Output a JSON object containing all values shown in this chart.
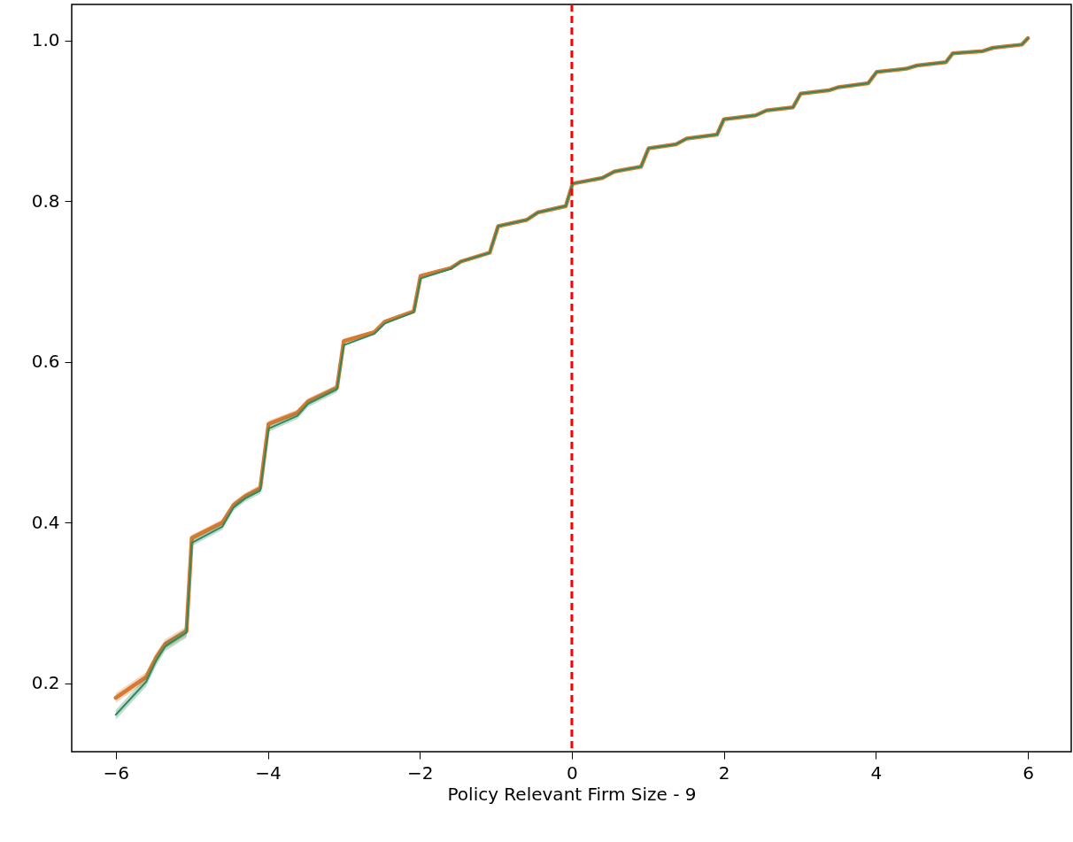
{
  "chart_data": {
    "type": "line",
    "xlabel": "Policy Relevant Firm Size - 9",
    "x": [
      -6,
      -5.6,
      -5.47,
      -5.35,
      -5.07,
      -5.0,
      -4.6,
      -4.45,
      -4.3,
      -4.1,
      -3.99,
      -3.61,
      -3.47,
      -3.09,
      -3.0,
      -2.6,
      -2.46,
      -2.08,
      -1.99,
      -1.59,
      -1.46,
      -1.08,
      -0.97,
      -0.59,
      -0.45,
      -0.08,
      0.01,
      0.4,
      0.56,
      0.91,
      1.01,
      1.37,
      1.51,
      1.91,
      2.0,
      2.42,
      2.56,
      2.91,
      3.01,
      3.38,
      3.51,
      3.9,
      4.01,
      4.4,
      4.54,
      4.92,
      5.01,
      5.41,
      5.54,
      5.92,
      6.0
    ],
    "series": [
      {
        "color": "#d9792f",
        "values": [
          0.182,
          0.208,
          0.232,
          0.249,
          0.265,
          0.381,
          0.4,
          0.422,
          0.433,
          0.443,
          0.523,
          0.537,
          0.551,
          0.568,
          0.626,
          0.637,
          0.65,
          0.663,
          0.707,
          0.717,
          0.725,
          0.736,
          0.769,
          0.777,
          0.786,
          0.794,
          0.822,
          0.829,
          0.837,
          0.843,
          0.866,
          0.871,
          0.878,
          0.883,
          0.902,
          0.907,
          0.913,
          0.917,
          0.934,
          0.938,
          0.942,
          0.947,
          0.961,
          0.965,
          0.969,
          0.973,
          0.984,
          0.987,
          0.991,
          0.995,
          1.003
        ],
        "lower": [
          0.176,
          0.202,
          0.226,
          0.243,
          0.259,
          0.377,
          0.396,
          0.418,
          0.429,
          0.439,
          0.519,
          0.533,
          0.547,
          0.564,
          0.622,
          null,
          null,
          null,
          null,
          null,
          null,
          null,
          null,
          null,
          null,
          null,
          null,
          null,
          null,
          null,
          null,
          null,
          null,
          null,
          null,
          null,
          null,
          null,
          null,
          null,
          null,
          null,
          null,
          null,
          null,
          null,
          null,
          null,
          null,
          null,
          null
        ],
        "upper": [
          0.188,
          0.214,
          0.238,
          0.255,
          0.271,
          0.385,
          0.404,
          0.426,
          0.437,
          0.447,
          0.527,
          0.541,
          0.555,
          0.572,
          0.63,
          null,
          null,
          null,
          null,
          null,
          null,
          null,
          null,
          null,
          null,
          null,
          null,
          null,
          null,
          null,
          null,
          null,
          null,
          null,
          null,
          null,
          null,
          null,
          null,
          null,
          null,
          null,
          null,
          null,
          null,
          null,
          null,
          null,
          null,
          null,
          null
        ]
      },
      {
        "color": "#2f8a5f",
        "values": [
          0.161,
          0.202,
          0.228,
          0.246,
          0.263,
          0.375,
          0.395,
          0.419,
          0.43,
          0.44,
          0.517,
          0.533,
          0.548,
          0.566,
          0.621,
          0.635,
          0.648,
          0.662,
          0.704,
          0.716,
          0.725,
          0.736,
          0.769,
          0.777,
          0.786,
          0.794,
          0.822,
          0.829,
          0.837,
          0.843,
          0.866,
          0.871,
          0.878,
          0.883,
          0.902,
          0.907,
          0.913,
          0.917,
          0.934,
          0.938,
          0.942,
          0.947,
          0.961,
          0.965,
          0.969,
          0.973,
          0.984,
          0.987,
          0.991,
          0.995,
          1.003
        ],
        "lower": [
          0.155,
          0.196,
          0.222,
          0.24,
          0.257,
          0.371,
          0.391,
          0.415,
          0.426,
          0.436,
          0.513,
          0.529,
          0.544,
          0.562,
          0.617,
          null,
          null,
          null,
          null,
          null,
          null,
          null,
          null,
          null,
          null,
          null,
          null,
          null,
          null,
          null,
          null,
          null,
          null,
          null,
          null,
          null,
          null,
          null,
          null,
          null,
          null,
          null,
          null,
          null,
          null,
          null,
          null,
          null,
          null,
          null,
          null
        ],
        "upper": [
          0.167,
          0.208,
          0.234,
          0.252,
          0.269,
          0.379,
          0.399,
          0.423,
          0.434,
          0.444,
          0.521,
          0.537,
          0.552,
          0.57,
          0.625,
          null,
          null,
          null,
          null,
          null,
          null,
          null,
          null,
          null,
          null,
          null,
          null,
          null,
          null,
          null,
          null,
          null,
          null,
          null,
          null,
          null,
          null,
          null,
          null,
          null,
          null,
          null,
          null,
          null,
          null,
          null,
          null,
          null,
          null,
          null,
          null
        ]
      }
    ],
    "xlim": [
      -6.58,
      6.57
    ],
    "ylim": [
      0.115,
      1.045
    ],
    "xticks": [
      {
        "value": -6,
        "label": "−6"
      },
      {
        "value": -4,
        "label": "−4"
      },
      {
        "value": -2,
        "label": "−2"
      },
      0,
      2,
      4,
      6
    ],
    "yticks": [
      {
        "value": 0.2,
        "label": "0.2"
      },
      {
        "value": 0.4,
        "label": "0.4"
      },
      {
        "value": 0.6,
        "label": "0.6"
      },
      {
        "value": 0.8,
        "label": "0.8"
      },
      {
        "value": 1.0,
        "label": "1.0"
      }
    ],
    "ref_lines": [
      {
        "axis": "x",
        "value": 0,
        "color": "#ff0000",
        "line_style": "dashed"
      }
    ],
    "grid": false,
    "line_style": "solid"
  }
}
